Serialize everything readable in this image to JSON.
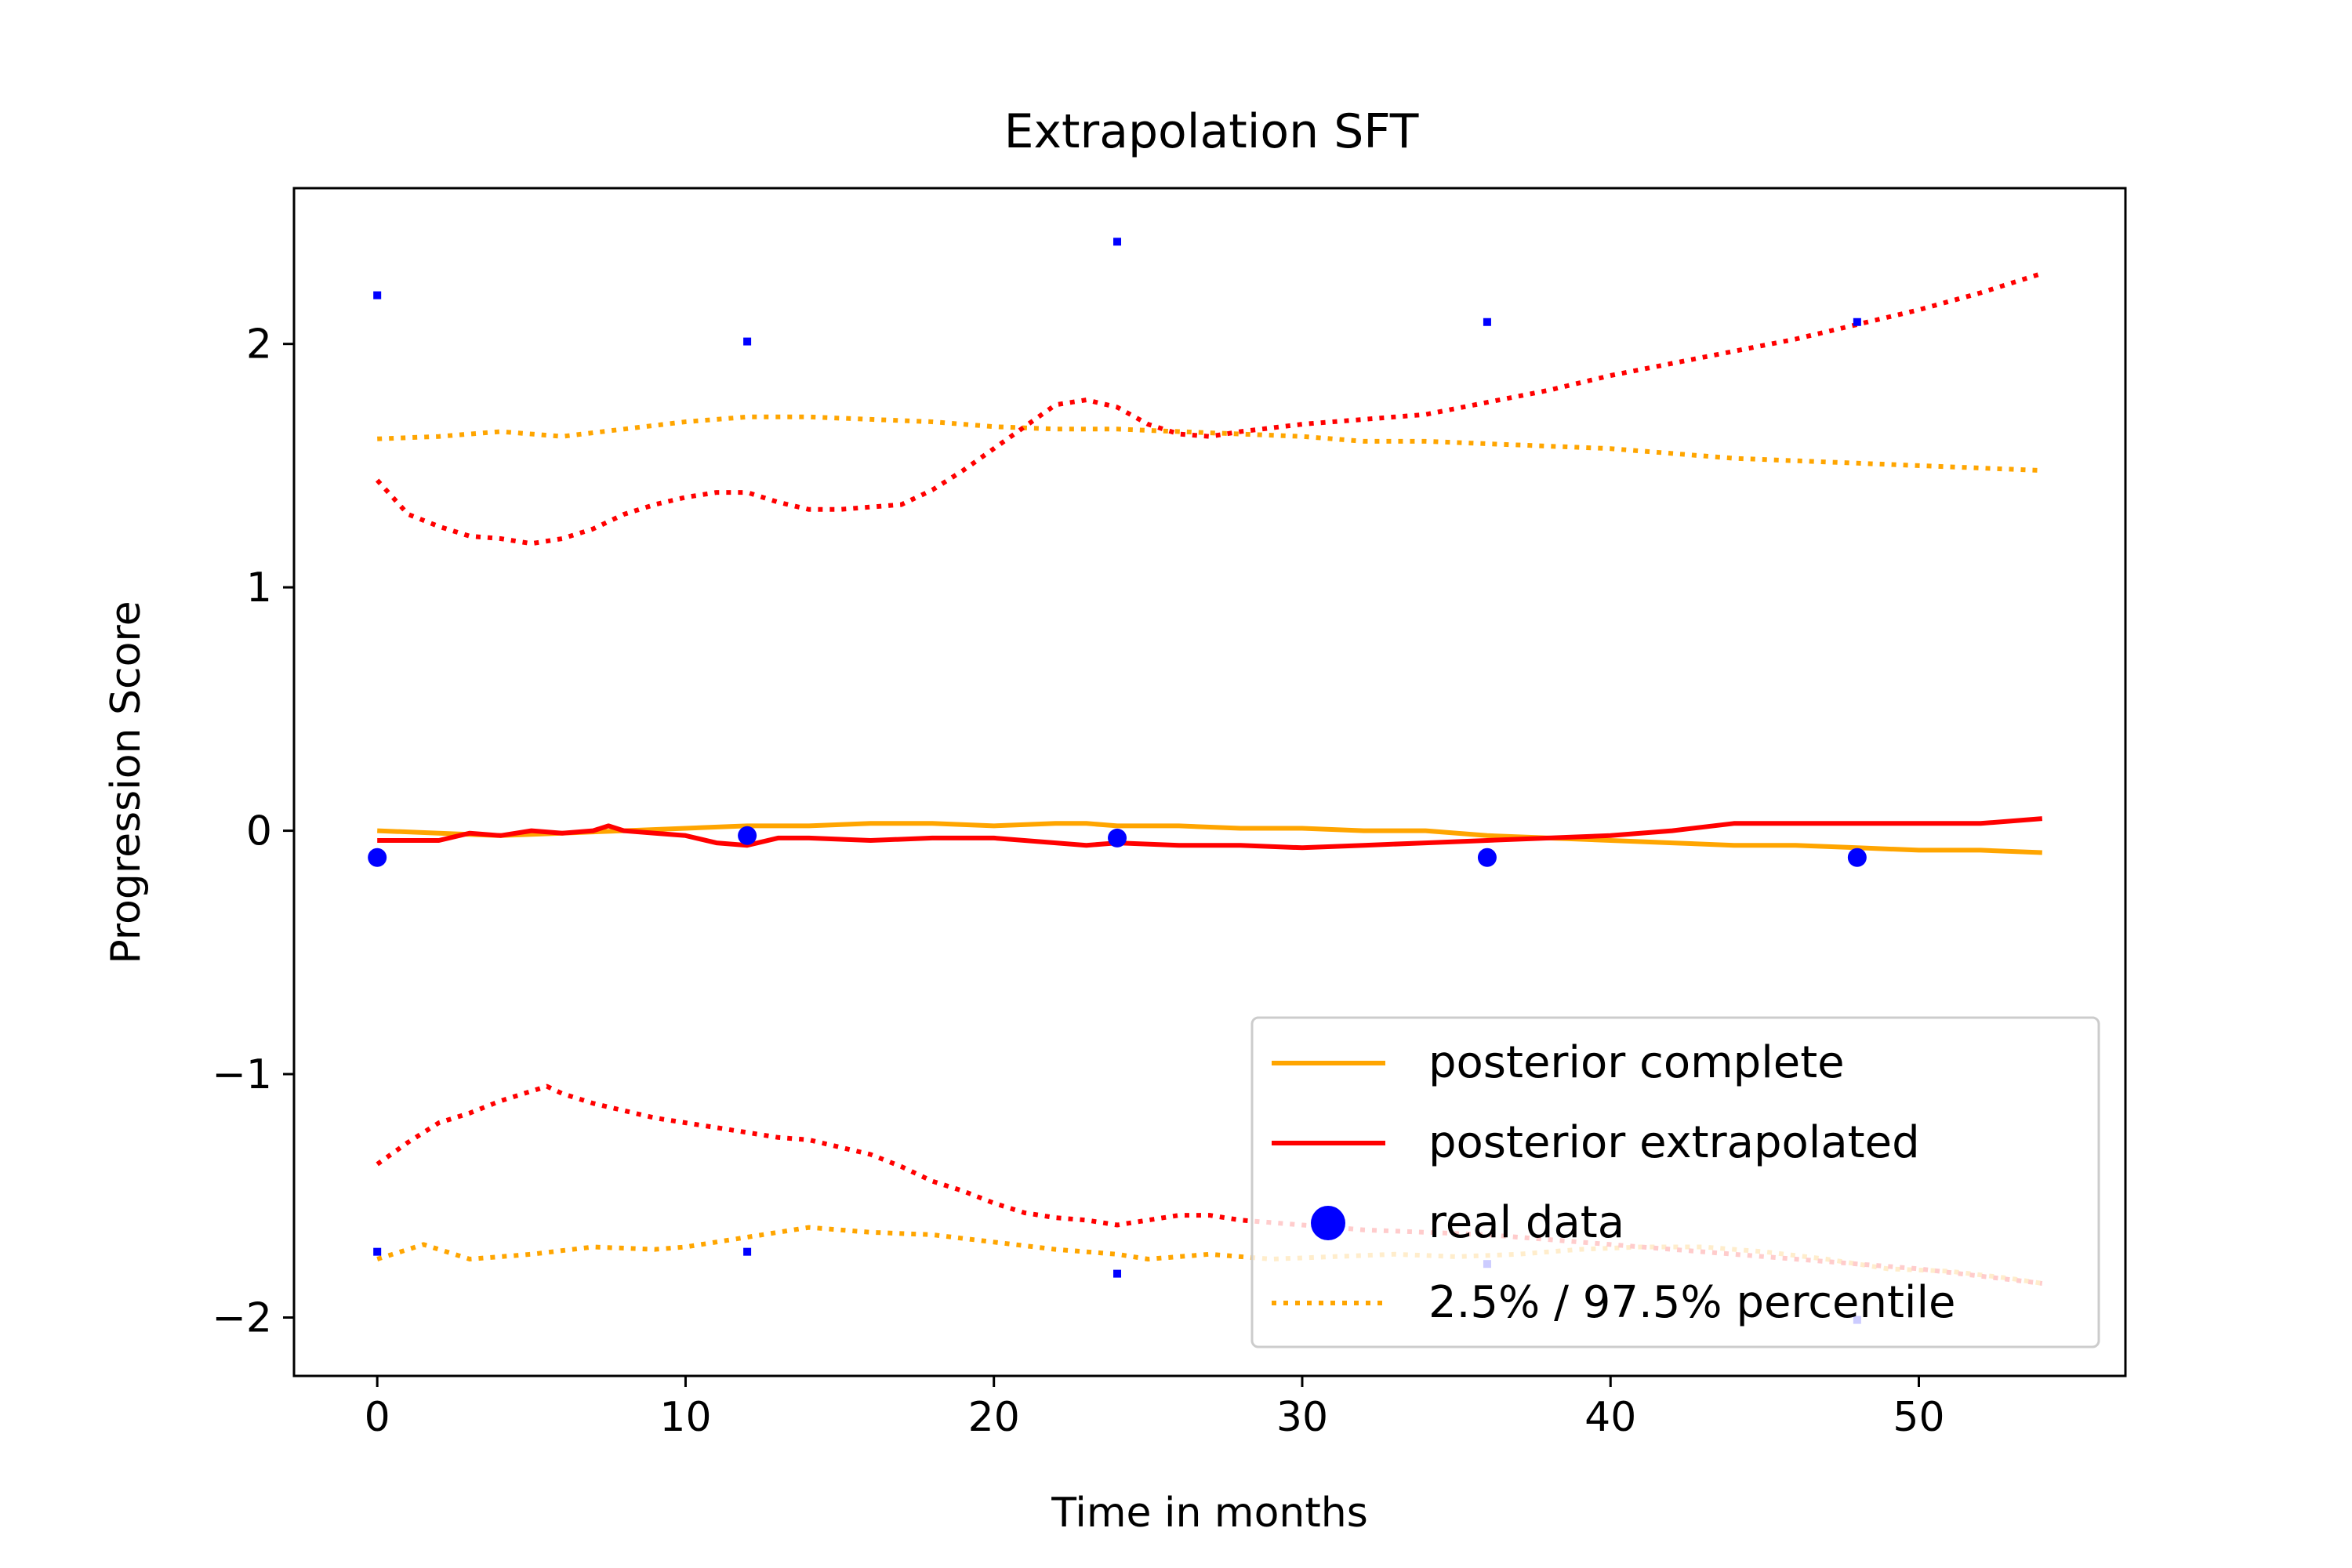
{
  "chart_data": {
    "type": "line",
    "title": "Extrapolation SFT",
    "xlabel": "Time in months",
    "ylabel": "Progression Score",
    "xlim": [
      -2.7,
      56.7
    ],
    "ylim": [
      -2.24,
      2.64
    ],
    "xticks": [
      0,
      10,
      20,
      30,
      40,
      50
    ],
    "yticks": [
      -2,
      -1,
      0,
      1,
      2
    ],
    "ytick_labels": [
      "−2",
      "−1",
      "0",
      "1",
      "2"
    ],
    "grid": false,
    "legend_position": "lower right",
    "series": [
      {
        "name": "posterior complete",
        "color": "#ffa500",
        "style": "solid",
        "x": [
          0,
          2,
          4,
          6,
          8,
          10,
          12,
          14,
          16,
          18,
          20,
          22,
          23,
          24,
          26,
          28,
          30,
          32,
          34,
          36,
          38,
          40,
          42,
          44,
          46,
          48,
          50,
          52,
          54
        ],
        "y": [
          0.0,
          -0.01,
          -0.02,
          -0.01,
          0.0,
          0.01,
          0.02,
          0.02,
          0.03,
          0.03,
          0.02,
          0.03,
          0.03,
          0.02,
          0.02,
          0.01,
          0.01,
          0.0,
          0.0,
          -0.02,
          -0.03,
          -0.04,
          -0.05,
          -0.06,
          -0.06,
          -0.07,
          -0.08,
          -0.08,
          -0.09
        ]
      },
      {
        "name": "posterior extrapolated",
        "color": "#ff0000",
        "style": "solid",
        "x": [
          0,
          2,
          3,
          4,
          5,
          6,
          7,
          7.5,
          8,
          9,
          10,
          11,
          12,
          13,
          14,
          16,
          18,
          20,
          22,
          23,
          24,
          26,
          28,
          30,
          32,
          34,
          36,
          38,
          40,
          42,
          44,
          46,
          48,
          50,
          52,
          54
        ],
        "y": [
          -0.04,
          -0.04,
          -0.01,
          -0.02,
          0.0,
          -0.01,
          0.0,
          0.02,
          0.0,
          -0.01,
          -0.02,
          -0.05,
          -0.06,
          -0.03,
          -0.03,
          -0.04,
          -0.03,
          -0.03,
          -0.05,
          -0.06,
          -0.05,
          -0.06,
          -0.06,
          -0.07,
          -0.06,
          -0.05,
          -0.04,
          -0.03,
          -0.02,
          0.0,
          0.03,
          0.03,
          0.03,
          0.03,
          0.03,
          0.05
        ]
      },
      {
        "name": "2.5% / 97.5% percentile",
        "color": "#ffa500",
        "style": "dotted",
        "x": [
          0,
          2,
          4,
          6,
          8,
          10,
          12,
          14,
          16,
          18,
          20,
          22,
          24,
          26,
          28,
          30,
          32,
          34,
          36,
          38,
          40,
          42,
          44,
          46,
          48,
          50,
          52,
          54
        ],
        "y": [
          1.61,
          1.62,
          1.64,
          1.62,
          1.65,
          1.68,
          1.7,
          1.7,
          1.69,
          1.68,
          1.66,
          1.65,
          1.65,
          1.64,
          1.63,
          1.62,
          1.6,
          1.6,
          1.59,
          1.58,
          1.57,
          1.55,
          1.53,
          1.52,
          1.51,
          1.5,
          1.49,
          1.48
        ]
      },
      {
        "name": "",
        "color": "#ffa500",
        "style": "dotted",
        "x": [
          0,
          1.5,
          3,
          5,
          7,
          9,
          10,
          12,
          14,
          16,
          18,
          20,
          22,
          24,
          25,
          27,
          29,
          31,
          33,
          35,
          37,
          39,
          41,
          43,
          45,
          47,
          49,
          51,
          53,
          54
        ],
        "y": [
          -1.76,
          -1.7,
          -1.76,
          -1.74,
          -1.71,
          -1.72,
          -1.71,
          -1.67,
          -1.63,
          -1.65,
          -1.66,
          -1.69,
          -1.72,
          -1.74,
          -1.76,
          -1.74,
          -1.76,
          -1.75,
          -1.74,
          -1.75,
          -1.74,
          -1.72,
          -1.71,
          -1.71,
          -1.73,
          -1.76,
          -1.8,
          -1.81,
          -1.84,
          -1.86
        ]
      },
      {
        "name": "",
        "color": "#ff0000",
        "style": "dotted",
        "x": [
          0,
          1,
          2,
          3,
          4,
          5,
          6,
          7,
          8,
          9,
          10,
          11,
          12,
          13,
          14,
          15,
          17,
          18,
          19,
          20,
          21,
          22,
          23,
          24,
          25,
          26,
          27,
          28,
          30,
          32,
          34,
          36,
          38,
          40,
          42,
          44,
          46,
          48,
          50,
          52,
          54
        ],
        "y": [
          1.44,
          1.3,
          1.25,
          1.21,
          1.2,
          1.18,
          1.2,
          1.24,
          1.3,
          1.34,
          1.37,
          1.39,
          1.39,
          1.35,
          1.32,
          1.32,
          1.34,
          1.4,
          1.48,
          1.57,
          1.66,
          1.75,
          1.77,
          1.74,
          1.67,
          1.63,
          1.62,
          1.64,
          1.67,
          1.69,
          1.71,
          1.76,
          1.81,
          1.87,
          1.92,
          1.97,
          2.02,
          2.08,
          2.14,
          2.21,
          2.29
        ]
      },
      {
        "name": "",
        "color": "#ff0000",
        "style": "dotted",
        "x": [
          0,
          1,
          2,
          3,
          4,
          5,
          5.5,
          6,
          7,
          8,
          9,
          10,
          11,
          12,
          13,
          14,
          15,
          16,
          17,
          18,
          19,
          20,
          21,
          22,
          23,
          24,
          25,
          26,
          27,
          28,
          30,
          32,
          34,
          36,
          38,
          40,
          42,
          44,
          46,
          48,
          50,
          52,
          54
        ],
        "y": [
          -1.37,
          -1.28,
          -1.2,
          -1.16,
          -1.11,
          -1.07,
          -1.05,
          -1.08,
          -1.12,
          -1.15,
          -1.18,
          -1.2,
          -1.22,
          -1.24,
          -1.26,
          -1.27,
          -1.3,
          -1.33,
          -1.38,
          -1.44,
          -1.48,
          -1.53,
          -1.57,
          -1.59,
          -1.6,
          -1.62,
          -1.6,
          -1.58,
          -1.58,
          -1.6,
          -1.62,
          -1.64,
          -1.65,
          -1.66,
          -1.68,
          -1.7,
          -1.72,
          -1.74,
          -1.76,
          -1.78,
          -1.8,
          -1.83,
          -1.86
        ]
      }
    ],
    "scatter": {
      "name": "real data",
      "color": "#0000ff",
      "points": [
        {
          "x": 0,
          "y": -0.11
        },
        {
          "x": 12,
          "y": -0.02
        },
        {
          "x": 24,
          "y": -0.03
        },
        {
          "x": 36,
          "y": -0.11
        },
        {
          "x": 48,
          "y": -0.11
        }
      ]
    },
    "small_points": {
      "color": "#0000ff",
      "points": [
        {
          "x": 0,
          "y": 2.2
        },
        {
          "x": 12,
          "y": 2.01
        },
        {
          "x": 24,
          "y": 2.42
        },
        {
          "x": 36,
          "y": 2.09
        },
        {
          "x": 48,
          "y": 2.09
        },
        {
          "x": 0,
          "y": -1.73
        },
        {
          "x": 12,
          "y": -1.73
        },
        {
          "x": 24,
          "y": -1.82
        },
        {
          "x": 36,
          "y": -1.78
        },
        {
          "x": 48,
          "y": -2.01
        }
      ]
    },
    "legend": [
      {
        "label": "posterior complete",
        "color": "#ffa500",
        "marker": "solid-line"
      },
      {
        "label": "posterior extrapolated",
        "color": "#ff0000",
        "marker": "solid-line"
      },
      {
        "label": "real data",
        "color": "#0000ff",
        "marker": "dot"
      },
      {
        "label": "2.5% / 97.5% percentile",
        "color": "#ffa500",
        "marker": "dotted-line"
      }
    ]
  }
}
